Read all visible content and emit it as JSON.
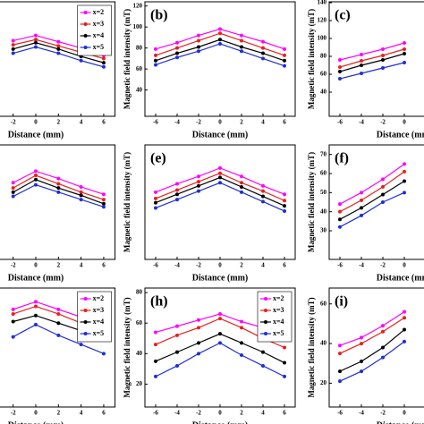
{
  "chart_data": [
    {
      "type": "line",
      "label": null,
      "xlabel": "Distance (mm)",
      "x": [
        -2,
        0,
        2,
        4,
        6
      ],
      "xlim": [
        -7,
        7
      ],
      "ylim": [
        15,
        124
      ],
      "xticks": [
        -2,
        0,
        2,
        4,
        6
      ],
      "yticks": [],
      "legend": "upper right",
      "series": [
        {
          "name": "x=2",
          "color": "#ff00ff",
          "values": [
            87,
            92,
            86,
            80,
            73
          ]
        },
        {
          "name": "x=3",
          "color": "#e8201c",
          "values": [
            83,
            88,
            82,
            76,
            70
          ]
        },
        {
          "name": "x=4",
          "color": "#000000",
          "values": [
            79,
            85,
            79,
            72,
            66
          ]
        },
        {
          "name": "x=5",
          "color": "#1f2fd6",
          "values": [
            75,
            81,
            75,
            68,
            62
          ]
        }
      ]
    },
    {
      "type": "line",
      "label": "(b)",
      "xlabel": "Distance (mm)",
      "ylabel": "Magnetic field intensity (mT)",
      "x": [
        -6,
        -4,
        -2,
        0,
        2,
        4,
        6
      ],
      "xlim": [
        -7,
        7
      ],
      "ylim": [
        15,
        124
      ],
      "xticks": [
        -6,
        -4,
        -2,
        0,
        2,
        4,
        6
      ],
      "yticks": [
        40,
        60,
        80,
        100,
        120
      ],
      "series": [
        {
          "name": "x=2",
          "color": "#ff00ff",
          "values": [
            79,
            85,
            92,
            98,
            92,
            86,
            79
          ]
        },
        {
          "name": "x=3",
          "color": "#e8201c",
          "values": [
            73,
            80,
            87,
            94,
            87,
            80,
            73
          ]
        },
        {
          "name": "x=4",
          "color": "#000000",
          "values": [
            68,
            75,
            81,
            88,
            81,
            75,
            68
          ]
        },
        {
          "name": "x=5",
          "color": "#1f2fd6",
          "values": [
            64,
            71,
            77,
            84,
            77,
            70,
            63
          ]
        }
      ]
    },
    {
      "type": "line",
      "label": "(c)",
      "xlabel": "Distance (mm)",
      "ylabel": "Magnetic field intensity (mT)",
      "x": [
        -6,
        -4,
        -2,
        0
      ],
      "xlim": [
        -7,
        7
      ],
      "ylim": [
        13,
        141
      ],
      "xticks": [
        -6,
        -4,
        -2,
        0
      ],
      "yticks": [
        40,
        60,
        80,
        100,
        120,
        140
      ],
      "series": [
        {
          "name": "x=2",
          "color": "#ff00ff",
          "values": [
            76,
            82,
            88,
            95
          ]
        },
        {
          "name": "x=3",
          "color": "#e8201c",
          "values": [
            68,
            75,
            81,
            88
          ]
        },
        {
          "name": "x=4",
          "color": "#000000",
          "values": [
            63,
            70,
            76,
            83
          ]
        },
        {
          "name": "x=5",
          "color": "#1f2fd6",
          "values": [
            55,
            61,
            67,
            73
          ]
        }
      ]
    },
    {
      "type": "line",
      "label": null,
      "xlabel": "Distance (mm)",
      "x": [
        -2,
        0,
        2,
        4,
        6
      ],
      "xlim": [
        -7,
        7
      ],
      "ylim": [
        15,
        124
      ],
      "xticks": [
        -2,
        0,
        2,
        4,
        6
      ],
      "yticks": [],
      "series": [
        {
          "name": "x=2",
          "color": "#ff00ff",
          "values": [
            88,
            99,
            92,
            84,
            77
          ]
        },
        {
          "name": "x=3",
          "color": "#e8201c",
          "values": [
            83,
            95,
            87,
            79,
            72
          ]
        },
        {
          "name": "x=4",
          "color": "#000000",
          "values": [
            79,
            91,
            83,
            76,
            68
          ]
        },
        {
          "name": "x=5",
          "color": "#1f2fd6",
          "values": [
            75,
            86,
            79,
            72,
            65
          ]
        }
      ]
    },
    {
      "type": "line",
      "label": "(e)",
      "xlabel": "Distance (mm)",
      "ylabel": "Magnetic field intensity (mT)",
      "x": [
        -6,
        -4,
        -2,
        0,
        2,
        4,
        6
      ],
      "xlim": [
        -7,
        7
      ],
      "ylim": [
        15,
        124
      ],
      "xticks": [
        -6,
        -4,
        -2,
        0,
        2,
        4,
        6
      ],
      "yticks": [],
      "series": [
        {
          "name": "x=2",
          "color": "#ff00ff",
          "values": [
            79,
            87,
            94,
            102,
            94,
            85,
            77
          ]
        },
        {
          "name": "x=3",
          "color": "#e8201c",
          "values": [
            73,
            81,
            89,
            97,
            88,
            80,
            71
          ]
        },
        {
          "name": "x=4",
          "color": "#000000",
          "values": [
            69,
            77,
            85,
            93,
            84,
            75,
            66
          ]
        },
        {
          "name": "x=5",
          "color": "#1f2fd6",
          "values": [
            64,
            72,
            80,
            88,
            79,
            70,
            61
          ]
        }
      ]
    },
    {
      "type": "line",
      "label": "(f)",
      "xlabel": "Distance (mm)",
      "ylabel": "Magnetic field intensity (mT)",
      "x": [
        -6,
        -4,
        -2,
        0
      ],
      "xlim": [
        -7,
        7
      ],
      "ylim": [
        15,
        75
      ],
      "xticks": [
        -6,
        -4,
        -2,
        0
      ],
      "yticks": [
        30,
        40,
        50,
        60,
        70
      ],
      "series": [
        {
          "name": "x=2",
          "color": "#ff00ff",
          "values": [
            44,
            50,
            57,
            65
          ]
        },
        {
          "name": "x=3",
          "color": "#e8201c",
          "values": [
            40,
            46,
            53,
            61
          ]
        },
        {
          "name": "x=4",
          "color": "#000000",
          "values": [
            36,
            42,
            49,
            56
          ]
        },
        {
          "name": "x=5",
          "color": "#1f2fd6",
          "values": [
            32,
            38,
            45,
            50
          ]
        }
      ]
    },
    {
      "type": "line",
      "label": null,
      "xlabel": "Distance (mm)",
      "x": [
        -2,
        0,
        2,
        4,
        6
      ],
      "xlim": [
        -7,
        7
      ],
      "ylim": [
        5,
        83
      ],
      "xticks": [
        -2,
        0,
        2,
        4,
        6
      ],
      "yticks": [],
      "legend": "upper right",
      "series": [
        {
          "name": "x=2",
          "color": "#ff00ff",
          "values": [
            69,
            74,
            69,
            64,
            59
          ]
        },
        {
          "name": "x=3",
          "color": "#e8201c",
          "values": [
            66,
            71,
            66,
            60,
            55
          ]
        },
        {
          "name": "x=4",
          "color": "#000000",
          "values": [
            61,
            65,
            60,
            55,
            49
          ]
        },
        {
          "name": "x=5",
          "color": "#1f2fd6",
          "values": [
            51,
            59,
            52,
            46,
            40
          ]
        }
      ]
    },
    {
      "type": "line",
      "label": "(h)",
      "xlabel": "Distance (mm)",
      "ylabel": "Magnetic field intensity (mT)",
      "x": [
        -6,
        -4,
        -2,
        0,
        2,
        4,
        6
      ],
      "xlim": [
        -7,
        7
      ],
      "ylim": [
        5,
        83
      ],
      "xticks": [
        -6,
        -4,
        -2,
        0,
        2,
        4,
        6
      ],
      "yticks": [
        20,
        40,
        60,
        80
      ],
      "legend": "upper right",
      "series": [
        {
          "name": "x=2",
          "color": "#ff00ff",
          "values": [
            54,
            58,
            62,
            66,
            61,
            57,
            52
          ]
        },
        {
          "name": "x=3",
          "color": "#e8201c",
          "values": [
            46,
            52,
            57,
            63,
            57,
            50,
            44
          ]
        },
        {
          "name": "x=4",
          "color": "#000000",
          "values": [
            35,
            41,
            47,
            53,
            47,
            41,
            34
          ]
        },
        {
          "name": "x=5",
          "color": "#1f2fd6",
          "values": [
            25,
            32,
            40,
            47,
            39,
            32,
            25
          ]
        }
      ]
    },
    {
      "type": "line",
      "label": "(i)",
      "xlabel": "Distance (mm)",
      "ylabel": "Magnetic field intensity (mT)",
      "x": [
        -6,
        -4,
        -2,
        0
      ],
      "xlim": [
        -7,
        7
      ],
      "ylim": [
        8,
        68
      ],
      "xticks": [
        -6,
        -4,
        -2,
        0
      ],
      "yticks": [
        20,
        40,
        60
      ],
      "series": [
        {
          "name": "x=2",
          "color": "#ff00ff",
          "values": [
            39,
            43,
            49,
            56
          ]
        },
        {
          "name": "x=3",
          "color": "#e8201c",
          "values": [
            35,
            40,
            46,
            53
          ]
        },
        {
          "name": "x=4",
          "color": "#000000",
          "values": [
            26,
            31,
            38,
            47
          ]
        },
        {
          "name": "x=5",
          "color": "#1f2fd6",
          "values": [
            21,
            26,
            33,
            41
          ]
        }
      ]
    }
  ]
}
